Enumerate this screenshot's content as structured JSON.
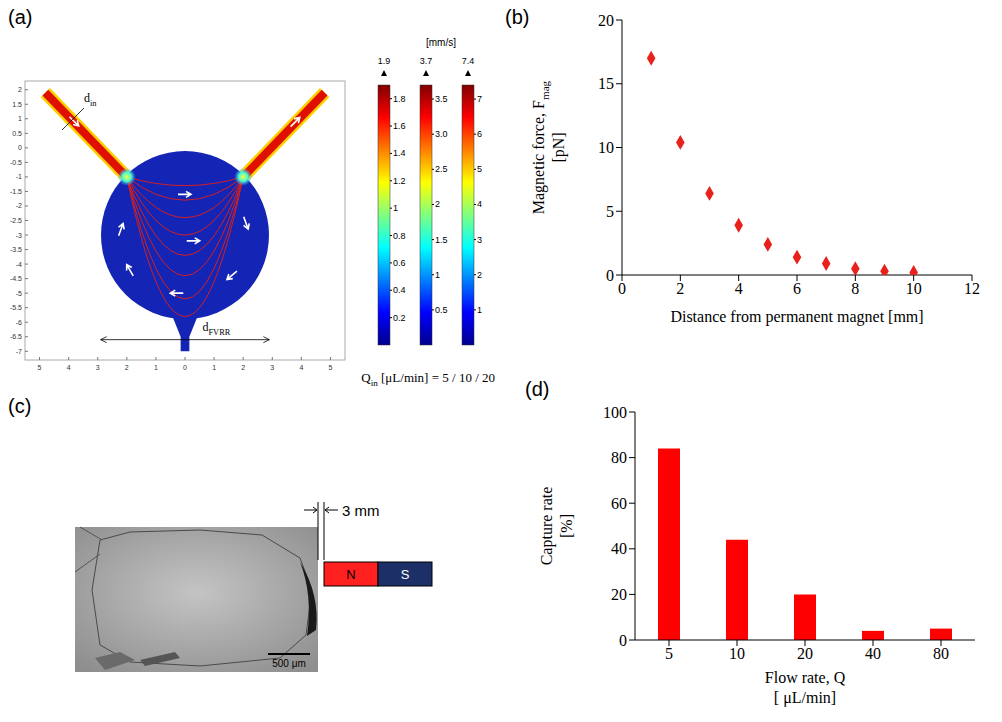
{
  "chart_data": [
    {
      "panel_label": "(b)",
      "type": "scatter",
      "xlabel": "Distance from permanent magnet [mm]",
      "ylabel": {
        "text": "Magnetic force, F",
        "sub": "mag",
        "rest": " [pN]"
      },
      "x": [
        1,
        2,
        3,
        4,
        5,
        6,
        7,
        8,
        9,
        10
      ],
      "values": [
        17,
        10.4,
        6.4,
        3.9,
        2.4,
        1.4,
        0.9,
        0.5,
        0.3,
        0.2
      ],
      "color": "#e8211c",
      "marker": "diamond",
      "xlim": [
        0,
        12
      ],
      "xticks": [
        0,
        2,
        4,
        6,
        8,
        10,
        12
      ],
      "ylim": [
        0,
        20
      ],
      "yticks": [
        0,
        5,
        10,
        15,
        20
      ]
    },
    {
      "panel_label": "(d)",
      "type": "bar",
      "xlabel": "Flow rate, Q [ μL/min]",
      "ylabel": "Capture rate [%]",
      "categories": [
        "5",
        "10",
        "20",
        "40",
        "80"
      ],
      "values": [
        84,
        44,
        20,
        4,
        5
      ],
      "color": "#ff0000",
      "ylim": [
        0,
        100
      ],
      "yticks": [
        0,
        20,
        40,
        60,
        80,
        100
      ]
    }
  ],
  "panel_a": {
    "panel_label": "(a)",
    "unit_label": "[mm/s]",
    "din_label": {
      "text": "d",
      "sub": "in"
    },
    "dfvrr_label": {
      "text": "d",
      "sub": "FVRR"
    },
    "flow_label": {
      "text": "Q",
      "sub": "in",
      "rest": " [μL/min] = 5 / 10 / 20"
    },
    "colorbars": [
      {
        "range": [
          0,
          1.9
        ],
        "ticks": [
          0.2,
          0.4,
          0.6,
          0.8,
          1,
          1.2,
          1.4,
          1.6,
          1.8
        ]
      },
      {
        "range": [
          0,
          3.7
        ],
        "ticks": [
          0.5,
          1,
          1.5,
          2,
          2.5,
          {
            "value": 3,
            "label": "3.0"
          },
          3.5
        ]
      },
      {
        "range": [
          0,
          7.4
        ],
        "ticks": [
          1,
          2,
          3,
          4,
          5,
          6,
          7
        ]
      }
    ],
    "xlim": [
      -5.5,
      5.5
    ],
    "xticks": [
      {
        "value": -5,
        "label": "5"
      },
      {
        "value": -4,
        "label": "4"
      },
      {
        "value": -3,
        "label": "3"
      },
      {
        "value": -2,
        "label": "2"
      },
      {
        "value": -1,
        "label": "1"
      },
      0,
      1,
      2,
      3,
      4,
      5
    ],
    "ylim": [
      -7.3,
      2.3
    ],
    "yticks": [
      2,
      1.5,
      1,
      0.5,
      0,
      -0.5,
      -1,
      -1.5,
      -2,
      -2.5,
      -3,
      -3.5,
      -4,
      -4.5,
      -5,
      -5.5,
      -6,
      -6.5,
      -7
    ]
  },
  "panel_c": {
    "panel_label": "(c)",
    "distance_label": "3 mm",
    "scale_bar_label": "500 μm",
    "magnet_labels": [
      "N",
      "S"
    ]
  }
}
